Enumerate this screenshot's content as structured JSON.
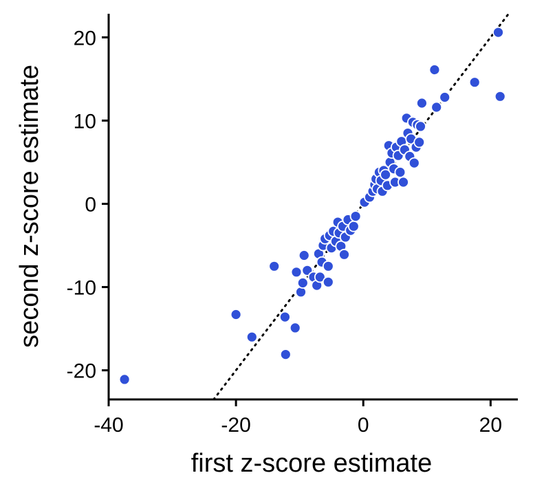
{
  "chart_data": {
    "type": "scatter",
    "title": "",
    "xlabel": "first z-score estimate",
    "ylabel": "second z-score estimate",
    "xlim": [
      -40,
      24.5
    ],
    "ylim": [
      -23.5,
      23
    ],
    "xticks": [
      -40,
      -20,
      0,
      20
    ],
    "yticks": [
      -20,
      -10,
      0,
      10,
      20
    ],
    "xtick_labels": [
      "-40",
      "-20",
      "0",
      "20"
    ],
    "ytick_labels": [
      "-20",
      "-10",
      "0",
      "10",
      "20"
    ],
    "grid": false,
    "legend": "none",
    "reference_line": {
      "style": "dotted",
      "slope": 1,
      "intercept": 0
    },
    "marker_color": "#3050d8",
    "marker_edge_color": "#ffffff",
    "points": [
      [
        -37.5,
        -21.1
      ],
      [
        -20,
        -13.3
      ],
      [
        -17.5,
        -16
      ],
      [
        -14,
        -7.5
      ],
      [
        -12.3,
        -13.6
      ],
      [
        -12.2,
        -18.1
      ],
      [
        -10.7,
        -14.9
      ],
      [
        -10.5,
        -8.2
      ],
      [
        -9.8,
        -10.6
      ],
      [
        -9.5,
        -9.5
      ],
      [
        -9.3,
        -6.2
      ],
      [
        -8.8,
        -8
      ],
      [
        -7.8,
        -8.8
      ],
      [
        -7.3,
        -9.8
      ],
      [
        -7,
        -6
      ],
      [
        -6.8,
        -8.8
      ],
      [
        -6.5,
        -7
      ],
      [
        -6.3,
        -5
      ],
      [
        -6,
        -4.2
      ],
      [
        -5.5,
        -9.4
      ],
      [
        -5.5,
        -7.5
      ],
      [
        -5.3,
        -3.8
      ],
      [
        -5,
        -5.3
      ],
      [
        -4.7,
        -3.3
      ],
      [
        -4.3,
        -4.5
      ],
      [
        -4,
        -2.2
      ],
      [
        -3.8,
        -3.5
      ],
      [
        -3.5,
        -5.1
      ],
      [
        -3.2,
        -2.7
      ],
      [
        -3,
        -6.1
      ],
      [
        -2.8,
        -4
      ],
      [
        -2.4,
        -1.9
      ],
      [
        -2,
        -3.2
      ],
      [
        -1.5,
        -2.7
      ],
      [
        -1.2,
        -1.5
      ],
      [
        0.2,
        0.2
      ],
      [
        1,
        0.8
      ],
      [
        1.5,
        1.5
      ],
      [
        1.8,
        2.3
      ],
      [
        2,
        3
      ],
      [
        2.2,
        1.8
      ],
      [
        2.5,
        3.8
      ],
      [
        2.8,
        2.8
      ],
      [
        3,
        1.5
      ],
      [
        3.2,
        4
      ],
      [
        3.5,
        3.5
      ],
      [
        3.8,
        2.2
      ],
      [
        4,
        7
      ],
      [
        4.2,
        5
      ],
      [
        4.5,
        6.1
      ],
      [
        4.8,
        4.2
      ],
      [
        5,
        2.6
      ],
      [
        5.2,
        6.8
      ],
      [
        5.5,
        5.8
      ],
      [
        5.8,
        3.8
      ],
      [
        6,
        7.5
      ],
      [
        6.3,
        2.6
      ],
      [
        6.5,
        6.5
      ],
      [
        6.8,
        10.3
      ],
      [
        7,
        8.5
      ],
      [
        7.3,
        5.7
      ],
      [
        7.5,
        7.8
      ],
      [
        7.8,
        9.8
      ],
      [
        8,
        4.9
      ],
      [
        8.3,
        6.8
      ],
      [
        8.5,
        9.5
      ],
      [
        8.8,
        7.4
      ],
      [
        9,
        9.3
      ],
      [
        9.2,
        12.1
      ],
      [
        11.2,
        16.1
      ],
      [
        11.5,
        11.6
      ],
      [
        12.8,
        12.8
      ],
      [
        17.5,
        14.6
      ],
      [
        21.2,
        20.6
      ],
      [
        21.5,
        12.9
      ]
    ]
  }
}
